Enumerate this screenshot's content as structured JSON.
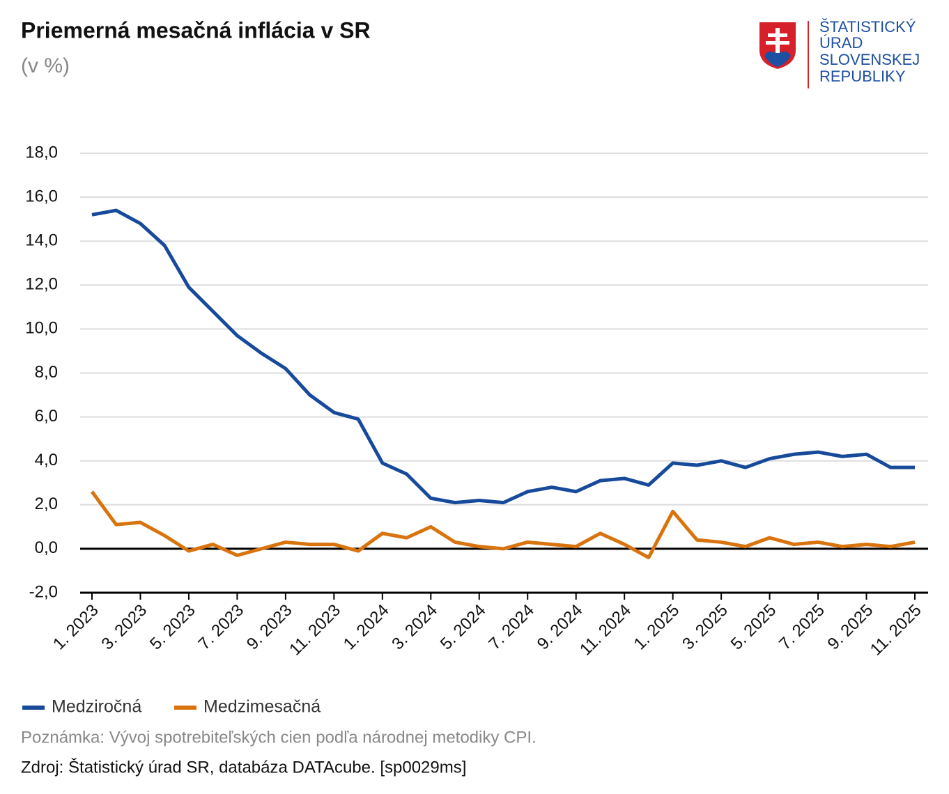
{
  "chart_data": {
    "type": "line",
    "title": "Priemerná mesačná inflácia v SR",
    "subtitle": "(v %)",
    "categories": [
      "1. 2023",
      null,
      "3. 2023",
      null,
      "5. 2023",
      null,
      "7. 2023",
      null,
      "9. 2023",
      null,
      "11. 2023",
      null,
      "1. 2024",
      null,
      "3. 2024",
      null,
      "5. 2024",
      null,
      "7. 2024",
      null,
      "9. 2024",
      null,
      "11. 2024",
      null,
      "1. 2025",
      null,
      "3. 2025",
      null,
      "5. 2025",
      null,
      "7. 2025",
      null,
      "9. 2025",
      null,
      "11. 2025"
    ],
    "series": [
      {
        "name": "Medziročná",
        "color": "#174a9a",
        "values": [
          15.2,
          15.4,
          14.8,
          13.8,
          11.9,
          10.8,
          9.7,
          8.9,
          8.2,
          7.0,
          6.2,
          5.9,
          3.9,
          3.4,
          2.3,
          2.1,
          2.2,
          2.1,
          2.6,
          2.8,
          2.6,
          3.1,
          3.2,
          2.9,
          3.9,
          3.8,
          4.0,
          3.7,
          4.1,
          4.3,
          4.4,
          4.2,
          4.3,
          3.7,
          3.7
        ]
      },
      {
        "name": "Medzimesačná",
        "color": "#d9730d",
        "values": [
          2.6,
          1.1,
          1.2,
          0.6,
          -0.1,
          0.2,
          -0.3,
          0.0,
          0.3,
          0.2,
          0.2,
          -0.1,
          0.7,
          0.5,
          1.0,
          0.3,
          0.1,
          0.0,
          0.3,
          0.2,
          0.1,
          0.7,
          0.2,
          -0.4,
          1.7,
          0.4,
          0.3,
          0.1,
          0.5,
          0.2,
          0.3,
          0.1,
          0.2,
          0.1,
          0.3
        ]
      }
    ],
    "ylim": [
      -2,
      18
    ],
    "yticks": [
      {
        "value": -2,
        "label": "-2,0"
      },
      {
        "value": 0,
        "label": "0,0"
      },
      {
        "value": 2,
        "label": "2,0"
      },
      {
        "value": 4,
        "label": "4,0"
      },
      {
        "value": 6,
        "label": "6,0"
      },
      {
        "value": 8,
        "label": "8,0"
      },
      {
        "value": 10,
        "label": "10,0"
      },
      {
        "value": 12,
        "label": "12,0"
      },
      {
        "value": 14,
        "label": "14,0"
      },
      {
        "value": 16,
        "label": "16,0"
      },
      {
        "value": 18,
        "label": "18,0"
      }
    ],
    "grid": true,
    "legend": "bottom-left",
    "note": "Poznámka: Vývoj spotrebiteľských cien podľa národnej metodiky CPI.",
    "source": "Zdroj: Štatistický úrad SR, databáza DATAcube. [sp0029ms]"
  },
  "logo": {
    "lines": [
      "ŠTATISTICKÝ",
      "ÚRAD",
      "SLOVENSKEJ",
      "REPUBLIKY"
    ]
  }
}
